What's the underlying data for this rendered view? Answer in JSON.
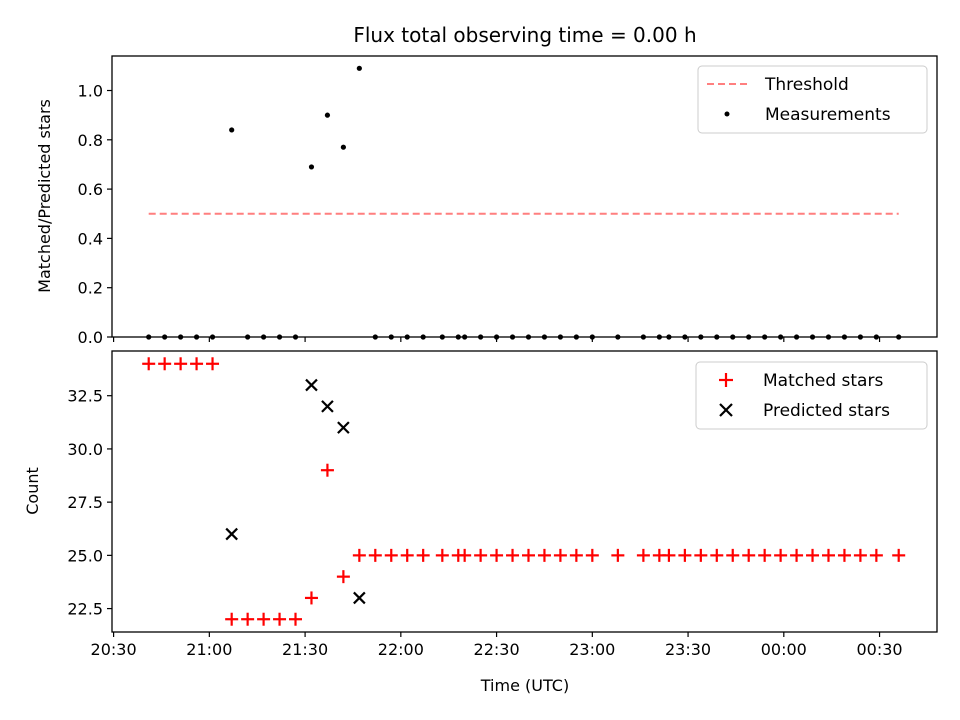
{
  "chart_data": {
    "title": "Flux total observing time = 0.00 h",
    "xlabel": "Time (UTC)",
    "x_ticks": [
      "20:30",
      "21:00",
      "21:30",
      "22:00",
      "22:30",
      "23:00",
      "23:30",
      "00:00",
      "00:30"
    ],
    "x_tick_minutes": [
      0,
      30,
      60,
      90,
      120,
      150,
      180,
      210,
      240
    ],
    "xlim_minutes": [
      -0.5,
      258
    ],
    "panels": [
      {
        "type": "scatter",
        "ylabel": "Matched/Predicted stars",
        "ylim": [
          0,
          1.14
        ],
        "yticks": [
          0.0,
          0.2,
          0.4,
          0.6,
          0.8,
          1.0
        ],
        "ytick_labels": [
          "0.0",
          "0.2",
          "0.4",
          "0.6",
          "0.8",
          "1.0"
        ],
        "legend": [
          "Threshold",
          "Measurements"
        ],
        "legend_position": "top-right",
        "series": [
          {
            "name": "Threshold",
            "kind": "dashed-line",
            "color": "#ff7f7f",
            "x": [
              11,
              246
            ],
            "y": [
              0.5,
              0.5
            ]
          },
          {
            "name": "Measurements",
            "kind": "dot",
            "color": "#000000",
            "x": [
              11,
              16,
              21,
              26,
              31,
              37,
              42,
              47,
              52,
              57,
              62,
              67,
              72,
              77,
              82,
              87,
              92,
              97,
              103,
              108,
              110,
              115,
              120,
              125,
              130,
              135,
              140,
              145,
              150,
              158,
              166,
              171,
              174,
              179,
              184,
              189,
              194,
              199,
              204,
              209,
              214,
              219,
              224,
              229,
              234,
              239,
              246
            ],
            "y": [
              0,
              0,
              0,
              0,
              0,
              0.84,
              0,
              0,
              0,
              0,
              0.69,
              0.9,
              0.77,
              1.09,
              0,
              0,
              0,
              0,
              0,
              0,
              0,
              0,
              0,
              0,
              0,
              0,
              0,
              0,
              0,
              0,
              0,
              0,
              0,
              0,
              0,
              0,
              0,
              0,
              0,
              0,
              0,
              0,
              0,
              0,
              0,
              0,
              0
            ]
          }
        ]
      },
      {
        "type": "scatter",
        "ylabel": "Count",
        "ylim": [
          21.4,
          34.6
        ],
        "yticks": [
          22.5,
          25.0,
          27.5,
          30.0,
          32.5
        ],
        "ytick_labels": [
          "22.5",
          "25.0",
          "27.5",
          "30.0",
          "32.5"
        ],
        "legend": [
          "Matched stars",
          "Predicted stars"
        ],
        "legend_position": "top-right",
        "series": [
          {
            "name": "Matched stars",
            "kind": "plus",
            "color": "#ff0000",
            "x": [
              11,
              16,
              21,
              26,
              31,
              37,
              42,
              47,
              52,
              57,
              62,
              67,
              72,
              77,
              82,
              87,
              92,
              97,
              103,
              108,
              110,
              115,
              120,
              125,
              130,
              135,
              140,
              145,
              150,
              158,
              166,
              171,
              174,
              179,
              184,
              189,
              194,
              199,
              204,
              209,
              214,
              219,
              224,
              229,
              234,
              239,
              246
            ],
            "y": [
              34,
              34,
              34,
              34,
              34,
              22,
              22,
              22,
              22,
              22,
              23,
              29,
              24,
              25,
              25,
              25,
              25,
              25,
              25,
              25,
              25,
              25,
              25,
              25,
              25,
              25,
              25,
              25,
              25,
              25,
              25,
              25,
              25,
              25,
              25,
              25,
              25,
              25,
              25,
              25,
              25,
              25,
              25,
              25,
              25,
              25,
              25
            ]
          },
          {
            "name": "Predicted stars",
            "kind": "cross",
            "color": "#000000",
            "x": [
              37,
              62,
              67,
              72,
              77
            ],
            "y": [
              26,
              33,
              32,
              31,
              23
            ]
          }
        ]
      }
    ]
  }
}
